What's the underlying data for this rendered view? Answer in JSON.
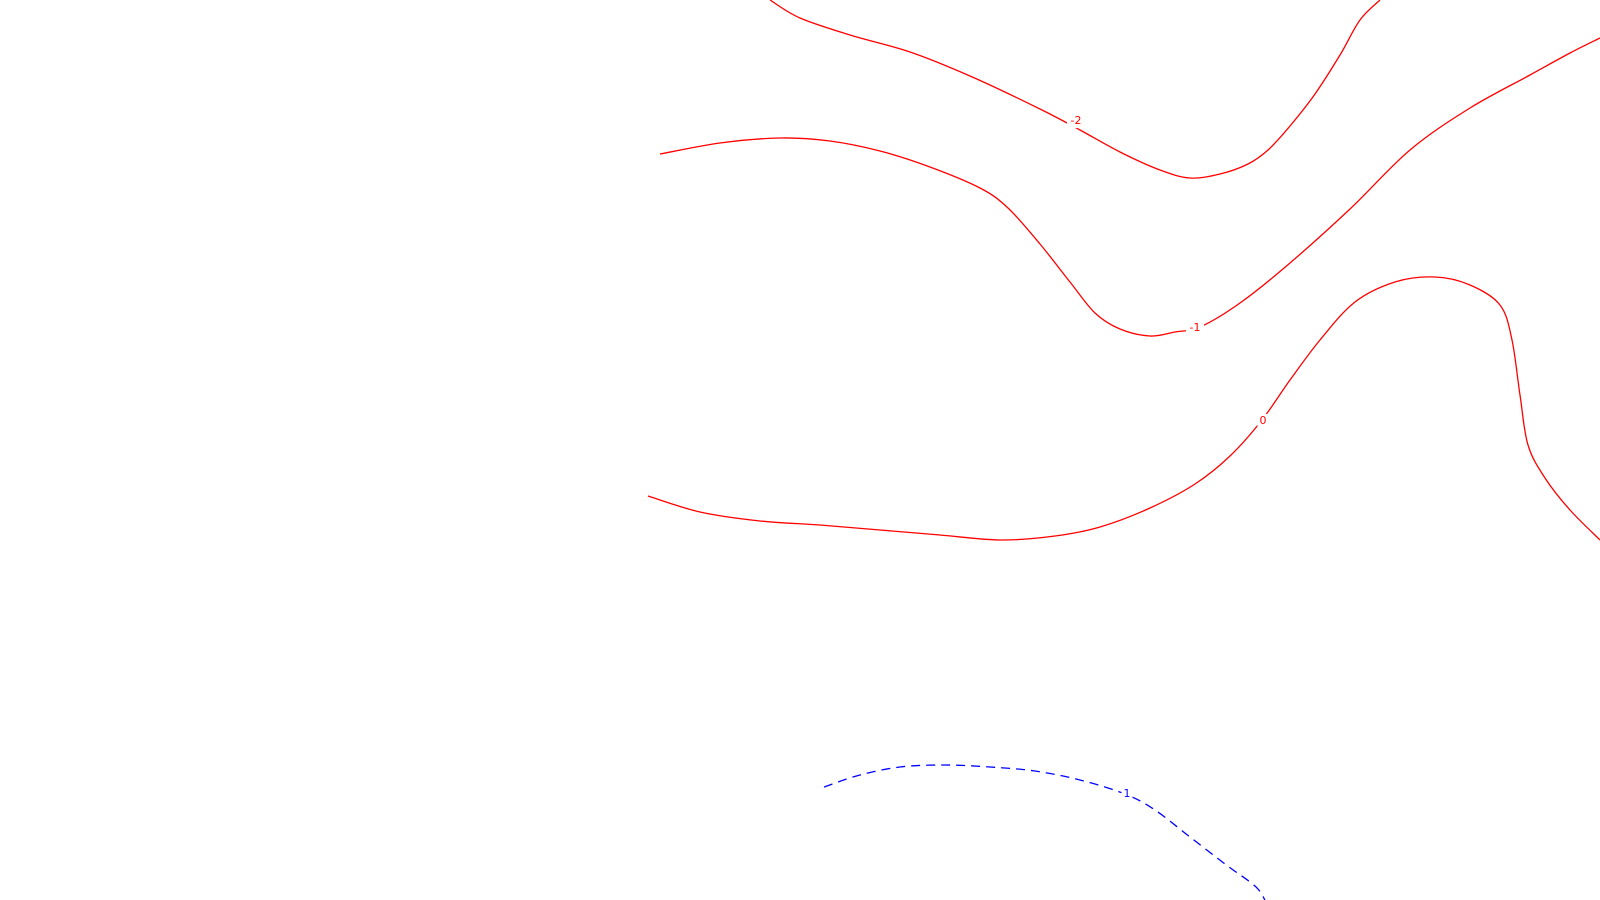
{
  "chart_data": {
    "type": "contour",
    "title": "",
    "xlabel": "",
    "ylabel": "",
    "grid": false,
    "legend": "none",
    "colors": {
      "positive": "#0000ff",
      "negative": "#ff0000",
      "zero": "#ff0000",
      "background": "#ffffff"
    },
    "contours": [
      {
        "level": -2,
        "label": "-2",
        "color": "#ff0000",
        "style": "solid",
        "path": [
          [
            770,
            0
          ],
          [
            800,
            18
          ],
          [
            850,
            35
          ],
          [
            910,
            52
          ],
          [
            970,
            76
          ],
          [
            1040,
            109
          ],
          [
            1080,
            130
          ],
          [
            1120,
            152
          ],
          [
            1160,
            170
          ],
          [
            1190,
            178
          ],
          [
            1220,
            174
          ],
          [
            1248,
            164
          ],
          [
            1268,
            150
          ],
          [
            1290,
            126
          ],
          [
            1315,
            94
          ],
          [
            1340,
            55
          ],
          [
            1360,
            20
          ],
          [
            1380,
            0
          ]
        ]
      },
      {
        "level": -1,
        "label": "-1",
        "color": "#ff0000",
        "style": "solid",
        "path": [
          [
            660,
            154
          ],
          [
            720,
            143
          ],
          [
            780,
            138
          ],
          [
            830,
            141
          ],
          [
            880,
            151
          ],
          [
            930,
            167
          ],
          [
            980,
            188
          ],
          [
            1008,
            208
          ],
          [
            1040,
            244
          ],
          [
            1070,
            282
          ],
          [
            1095,
            313
          ],
          [
            1120,
            329
          ],
          [
            1150,
            336
          ],
          [
            1175,
            332
          ],
          [
            1200,
            327
          ],
          [
            1240,
            303
          ],
          [
            1290,
            263
          ],
          [
            1350,
            209
          ],
          [
            1410,
            150
          ],
          [
            1470,
            108
          ],
          [
            1530,
            75
          ],
          [
            1570,
            53
          ],
          [
            1600,
            38
          ]
        ]
      },
      {
        "level": 0,
        "label": "0",
        "color": "#ff0000",
        "style": "solid",
        "path": [
          [
            648,
            496
          ],
          [
            700,
            512
          ],
          [
            760,
            521
          ],
          [
            820,
            525
          ],
          [
            880,
            530
          ],
          [
            940,
            535
          ],
          [
            1000,
            540
          ],
          [
            1055,
            536
          ],
          [
            1100,
            527
          ],
          [
            1150,
            508
          ],
          [
            1195,
            484
          ],
          [
            1230,
            456
          ],
          [
            1262,
            420
          ],
          [
            1290,
            380
          ],
          [
            1320,
            340
          ],
          [
            1355,
            302
          ],
          [
            1395,
            282
          ],
          [
            1435,
            277
          ],
          [
            1470,
            285
          ],
          [
            1500,
            305
          ],
          [
            1512,
            340
          ],
          [
            1520,
            395
          ],
          [
            1528,
            445
          ],
          [
            1545,
            478
          ],
          [
            1570,
            510
          ],
          [
            1600,
            540
          ]
        ]
      },
      {
        "level": 1,
        "label": "1",
        "color": "#0000ff",
        "style": "dashed",
        "path": [
          [
            824,
            787
          ],
          [
            860,
            775
          ],
          [
            900,
            767
          ],
          [
            945,
            765
          ],
          [
            990,
            767
          ],
          [
            1035,
            771
          ],
          [
            1080,
            780
          ],
          [
            1125,
            794
          ],
          [
            1155,
            810
          ],
          [
            1190,
            837
          ],
          [
            1225,
            864
          ],
          [
            1255,
            886
          ],
          [
            1265,
            900
          ]
        ]
      }
    ],
    "labels": [
      {
        "text": "-2",
        "level": -2,
        "at": [
          1076,
          121
        ],
        "color": "#ff0000"
      },
      {
        "text": "-1",
        "level": -1,
        "at": [
          1195,
          328
        ],
        "color": "#ff0000"
      },
      {
        "text": "0",
        "level": 0,
        "at": [
          1263,
          421
        ],
        "color": "#ff0000"
      },
      {
        "text": "1",
        "level": 1,
        "at": [
          1127,
          794
        ],
        "color": "#0000ff"
      }
    ]
  }
}
